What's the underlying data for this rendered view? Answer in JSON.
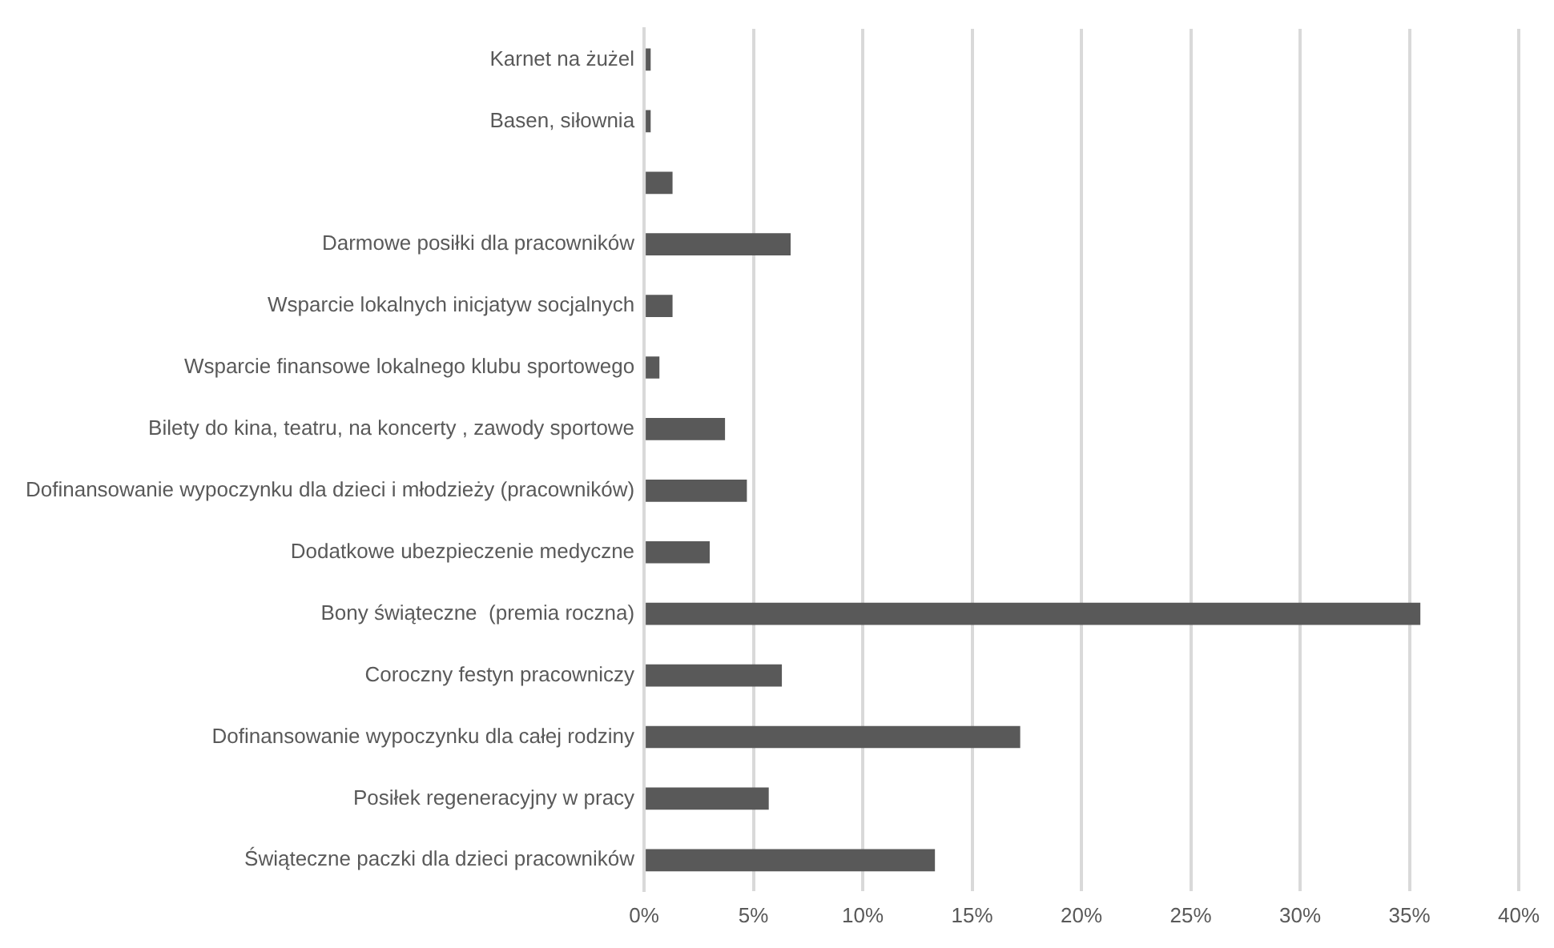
{
  "chart_data": {
    "type": "bar",
    "orientation": "horizontal",
    "categories": [
      "Karnet na żużel",
      "Basen, siłownia",
      null,
      "Darmowe posiłki dla pracowników",
      "Wsparcie lokalnych inicjatyw socjalnych",
      "Wsparcie finansowe lokalnego klubu sportowego",
      "Bilety do kina, teatru, na koncerty , zawody sportowe",
      "Dofinansowanie wypoczynku dla dzieci i młodzieży (pracowników)",
      "Dodatkowe ubezpieczenie medyczne",
      "Bony świąteczne  (premia roczna)",
      "Coroczny festyn pracowniczy",
      "Dofinansowanie wypoczynku dla całej rodziny",
      "Posiłek regeneracyjny w pracy",
      "Świąteczne paczki dla dzieci pracowników"
    ],
    "values": [
      0.3,
      0.3,
      1.3,
      6.7,
      1.3,
      0.7,
      3.7,
      4.7,
      3.0,
      35.5,
      6.3,
      17.2,
      5.7,
      13.3
    ],
    "color": "#595959",
    "xlim": [
      0,
      40
    ],
    "xticks": [
      {
        "value": 0,
        "label": "0%"
      },
      {
        "value": 5,
        "label": "5%"
      },
      {
        "value": 10,
        "label": "10%"
      },
      {
        "value": 15,
        "label": "15%"
      },
      {
        "value": 20,
        "label": "20%"
      },
      {
        "value": 25,
        "label": "25%"
      },
      {
        "value": 30,
        "label": "30%"
      },
      {
        "value": 35,
        "label": "35%"
      },
      {
        "value": 40,
        "label": "40%"
      }
    ],
    "grid": "x"
  }
}
